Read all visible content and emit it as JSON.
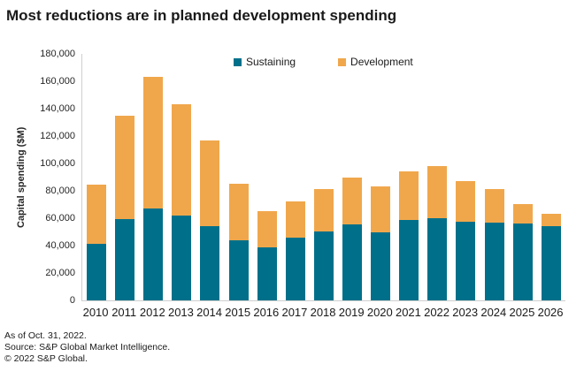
{
  "title": "Most reductions are in planned development spending",
  "footer": {
    "as_of": "As of Oct. 31, 2022.",
    "source": "Source: S&P Global Market Intelligence.",
    "copyright": "© 2022 S&P Global."
  },
  "chart_data": {
    "type": "bar",
    "stacked": true,
    "title": "Most reductions are in planned development spending",
    "xlabel": "",
    "ylabel": "Capital spending ($M)",
    "ylim": [
      0,
      180000
    ],
    "ytick_step": 20000,
    "grid": false,
    "legend_position": "top-center",
    "categories": [
      "2010",
      "2011",
      "2012",
      "2013",
      "2014",
      "2015",
      "2016",
      "2017",
      "2018",
      "2019",
      "2020",
      "2021",
      "2022",
      "2023",
      "2024",
      "2025",
      "2026"
    ],
    "series": [
      {
        "name": "Sustaining",
        "color": "#00708A",
        "values": [
          41000,
          59500,
          67000,
          62000,
          54500,
          44000,
          38500,
          46000,
          50500,
          55500,
          50000,
          58500,
          60000,
          57500,
          57000,
          56000,
          54000
        ]
      },
      {
        "name": "Development",
        "color": "#F0A74C",
        "values": [
          43500,
          75500,
          96500,
          81000,
          62000,
          41500,
          26500,
          26500,
          31000,
          34000,
          33000,
          35500,
          38000,
          29500,
          24500,
          14500,
          9000
        ]
      }
    ]
  }
}
